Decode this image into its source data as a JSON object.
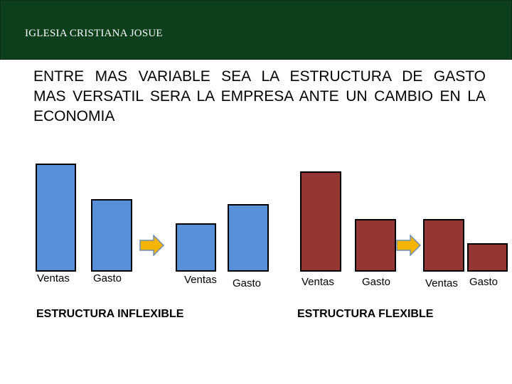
{
  "header": {
    "title": "IGLESIA CRISTIANA JOSUE",
    "bg_color": "#0d3f1d"
  },
  "heading": "ENTRE MAS VARIABLE SEA LA ESTRUCTURA DE GASTO MAS VERSATIL SERA LA EMPRESA ANTE UN CAMBIO EN LA ECONOMIA",
  "colors": {
    "inflexible": "#578fd8",
    "flexible": "#943634",
    "arrow": "#f4b400"
  },
  "labels": {
    "inf_before_ventas": "Ventas",
    "inf_before_gasto": "Gasto",
    "inf_after_ventas": "Ventas",
    "inf_after_gasto": "Gasto",
    "flex_before_ventas": "Ventas",
    "flex_before_gasto": "Gasto",
    "flex_after_ventas": "Ventas",
    "flex_after_gasto": "Gasto"
  },
  "captions": {
    "inflexible": "ESTRUCTURA INFLEXIBLE",
    "flexible": "ESTRUCTURA FLEXIBLE"
  }
}
